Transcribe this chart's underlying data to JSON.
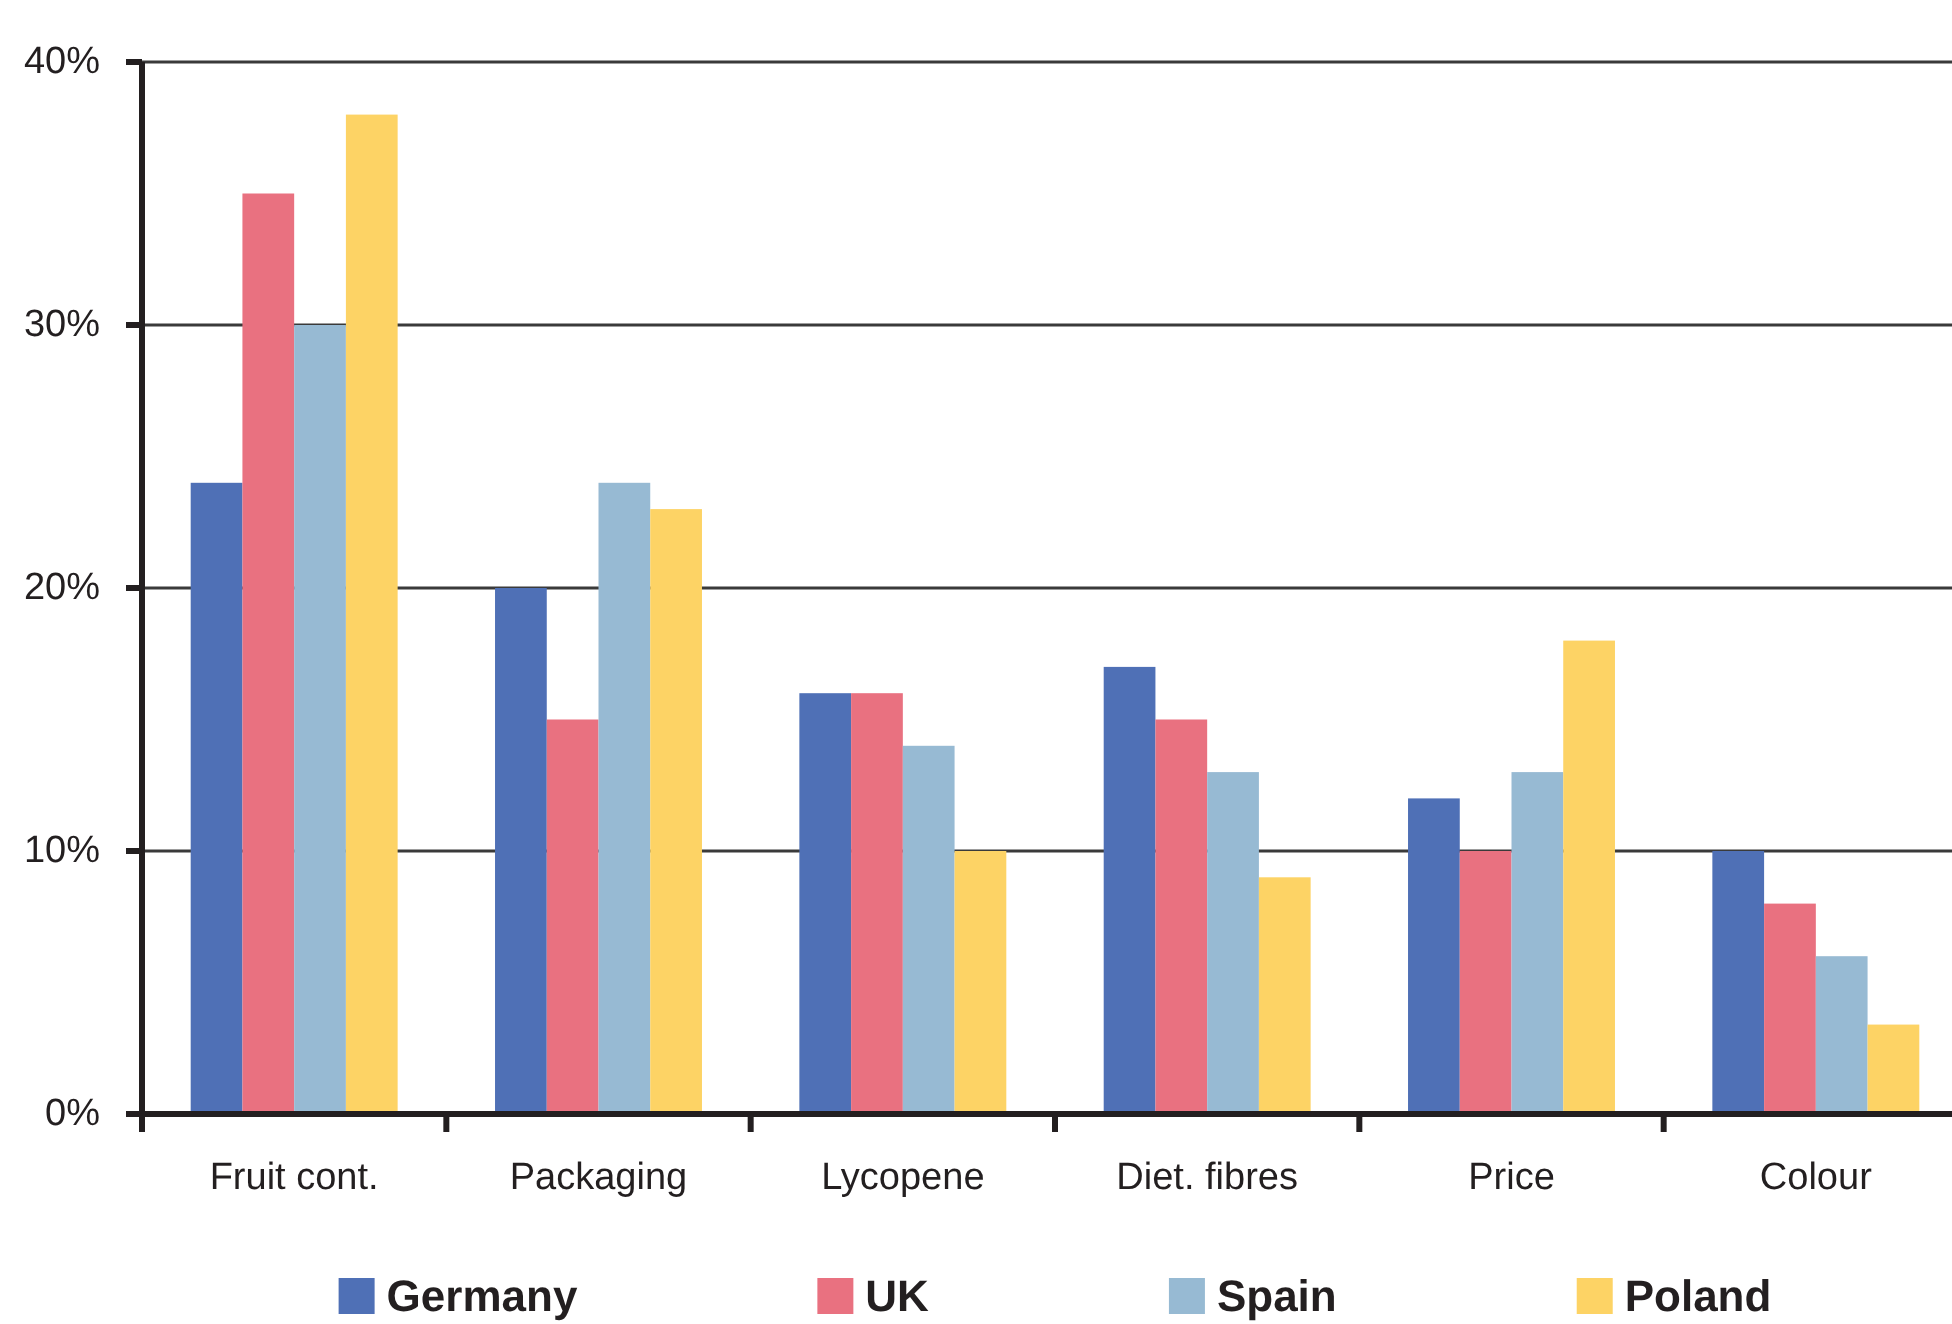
{
  "chart_data": {
    "type": "bar",
    "categories": [
      "Fruit cont.",
      "Packaging",
      "Lycopene",
      "Diet. fibres",
      "Price",
      "Colour"
    ],
    "series": [
      {
        "name": "Germany",
        "color": "#4f70b6",
        "values": [
          24,
          20,
          16,
          17,
          12,
          10
        ]
      },
      {
        "name": "UK",
        "color": "#e97180",
        "values": [
          35,
          15,
          16,
          15,
          10,
          8
        ]
      },
      {
        "name": "Spain",
        "color": "#97bad3",
        "values": [
          30,
          24,
          14,
          13,
          13,
          6
        ]
      },
      {
        "name": "Poland",
        "color": "#fdd365",
        "values": [
          38,
          23,
          10,
          9,
          18,
          3.4
        ]
      }
    ],
    "ylim": [
      0,
      40
    ],
    "yticks": [
      {
        "value": 0,
        "label": "0%"
      },
      {
        "value": 10,
        "label": "10%"
      },
      {
        "value": 20,
        "label": "20%"
      },
      {
        "value": 30,
        "label": "30%"
      },
      {
        "value": 40,
        "label": "40%"
      }
    ],
    "grid": "y",
    "legend": "bottom"
  }
}
